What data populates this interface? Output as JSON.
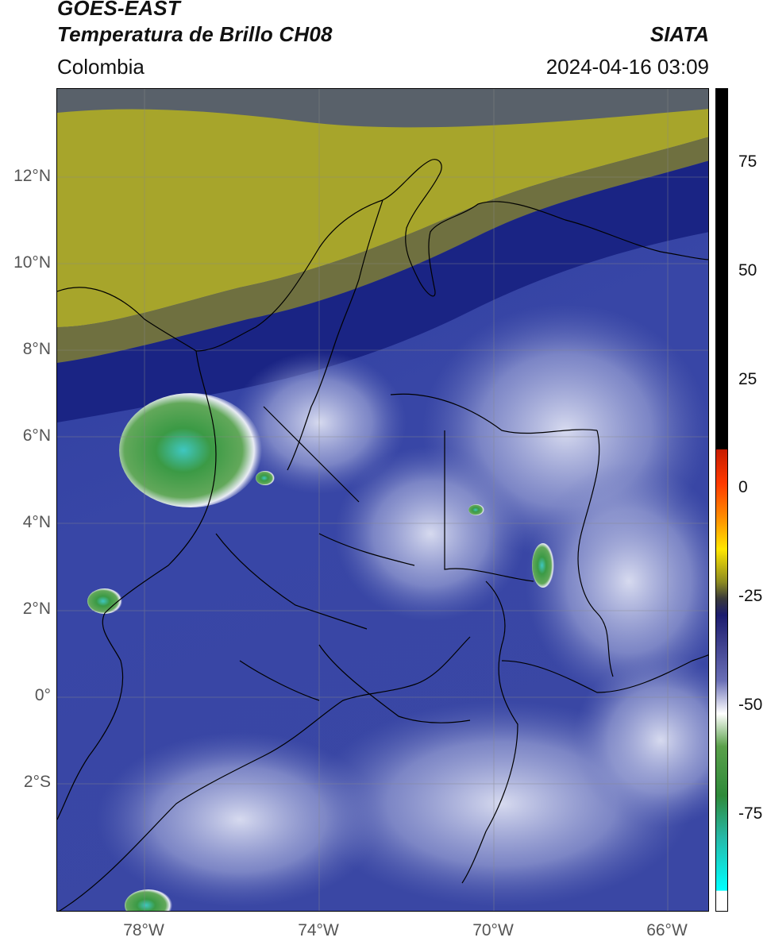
{
  "header": {
    "title_line1": "GOES-EAST",
    "title_line2": "Temperatura de Brillo CH08",
    "organization": "SIATA",
    "region": "Colombia",
    "timestamp": "2024-04-16 03:09"
  },
  "map": {
    "lat_labels": [
      "12°N",
      "10°N",
      "8°N",
      "6°N",
      "4°N",
      "2°N",
      "0°",
      "2°S"
    ],
    "lon_labels": [
      "78°W",
      "74°W",
      "70°W",
      "66°W"
    ],
    "colors": {
      "warm_band": "#a7a52b",
      "dark_band": "#1c2c8b",
      "mid_blue": "#3b4aa8",
      "light": "#d6d9ef",
      "cloud_top_green": "#3b9a45",
      "cloud_top_cyan": "#3fc7c1",
      "border_line": "#000000",
      "grid_line": "#888888"
    }
  },
  "colorbar": {
    "tick_labels": [
      "75",
      "50",
      "25",
      "0",
      "-25",
      "-50",
      "-75"
    ],
    "colors": [
      "#000000",
      "#ff1a00",
      "#ff8a00",
      "#ffe600",
      "#7a7a1e",
      "#1c1c6e",
      "#ffffff",
      "#3a8a3a",
      "#26b8a6",
      "#00ffff"
    ]
  }
}
